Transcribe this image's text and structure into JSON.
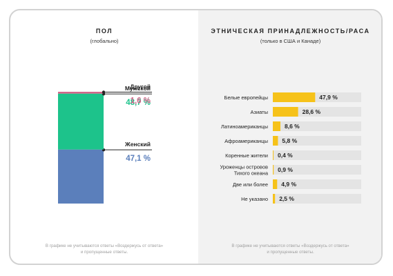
{
  "gender_panel": {
    "title": "ПОЛ",
    "subtitle": "(глобально)",
    "footnote_line1": "В графике не учитываются ответы «Воздержусь от ответа»",
    "footnote_line2": "и пропущенные ответы."
  },
  "ethnicity_panel": {
    "title": "ЭТНИЧЕСКАЯ ПРИНАДЛЕЖНОСТЬ/РАСА",
    "subtitle": "(только в США и Канаде)",
    "footnote_line1": "В графике не учитываются ответы «Воздержусь от ответа»",
    "footnote_line2": "и пропущенные ответы."
  },
  "chart_data": [
    {
      "type": "bar",
      "stacked": true,
      "title": "ПОЛ",
      "subtitle": "(глобально)",
      "categories": [
        "Женский",
        "Мужской",
        "Другой"
      ],
      "values": [
        47.1,
        48.7,
        1.6
      ],
      "value_labels": [
        "47,1 %",
        "48,7 %",
        "1,6 %"
      ],
      "colors": [
        "#5b7fbb",
        "#1dc38b",
        "#d2678a"
      ]
    },
    {
      "type": "bar",
      "orientation": "horizontal",
      "title": "ЭТНИЧЕСКАЯ ПРИНАДЛЕЖНОСТЬ/РАСА",
      "subtitle": "(только в США и Канаде)",
      "categories": [
        [
          "Белые европейцы"
        ],
        [
          "Азиаты"
        ],
        [
          "Латиноамериканцы"
        ],
        [
          "Афроамериканцы"
        ],
        [
          "Коренные жители"
        ],
        [
          "Уроженцы островов",
          "Тихого океана"
        ],
        [
          "Две или более"
        ],
        [
          "Не указано"
        ]
      ],
      "values": [
        47.9,
        28.6,
        8.6,
        5.8,
        0.4,
        0.9,
        4.9,
        2.5
      ],
      "value_labels": [
        "47,9 %",
        "28,6 %",
        "8,6 %",
        "5,8 %",
        "0,4 %",
        "0,9 %",
        "4,9 %",
        "2,5 %"
      ],
      "bar_color": "#f6c21a",
      "track_color": "#e4e4e4",
      "xlim": [
        0,
        100
      ]
    }
  ]
}
